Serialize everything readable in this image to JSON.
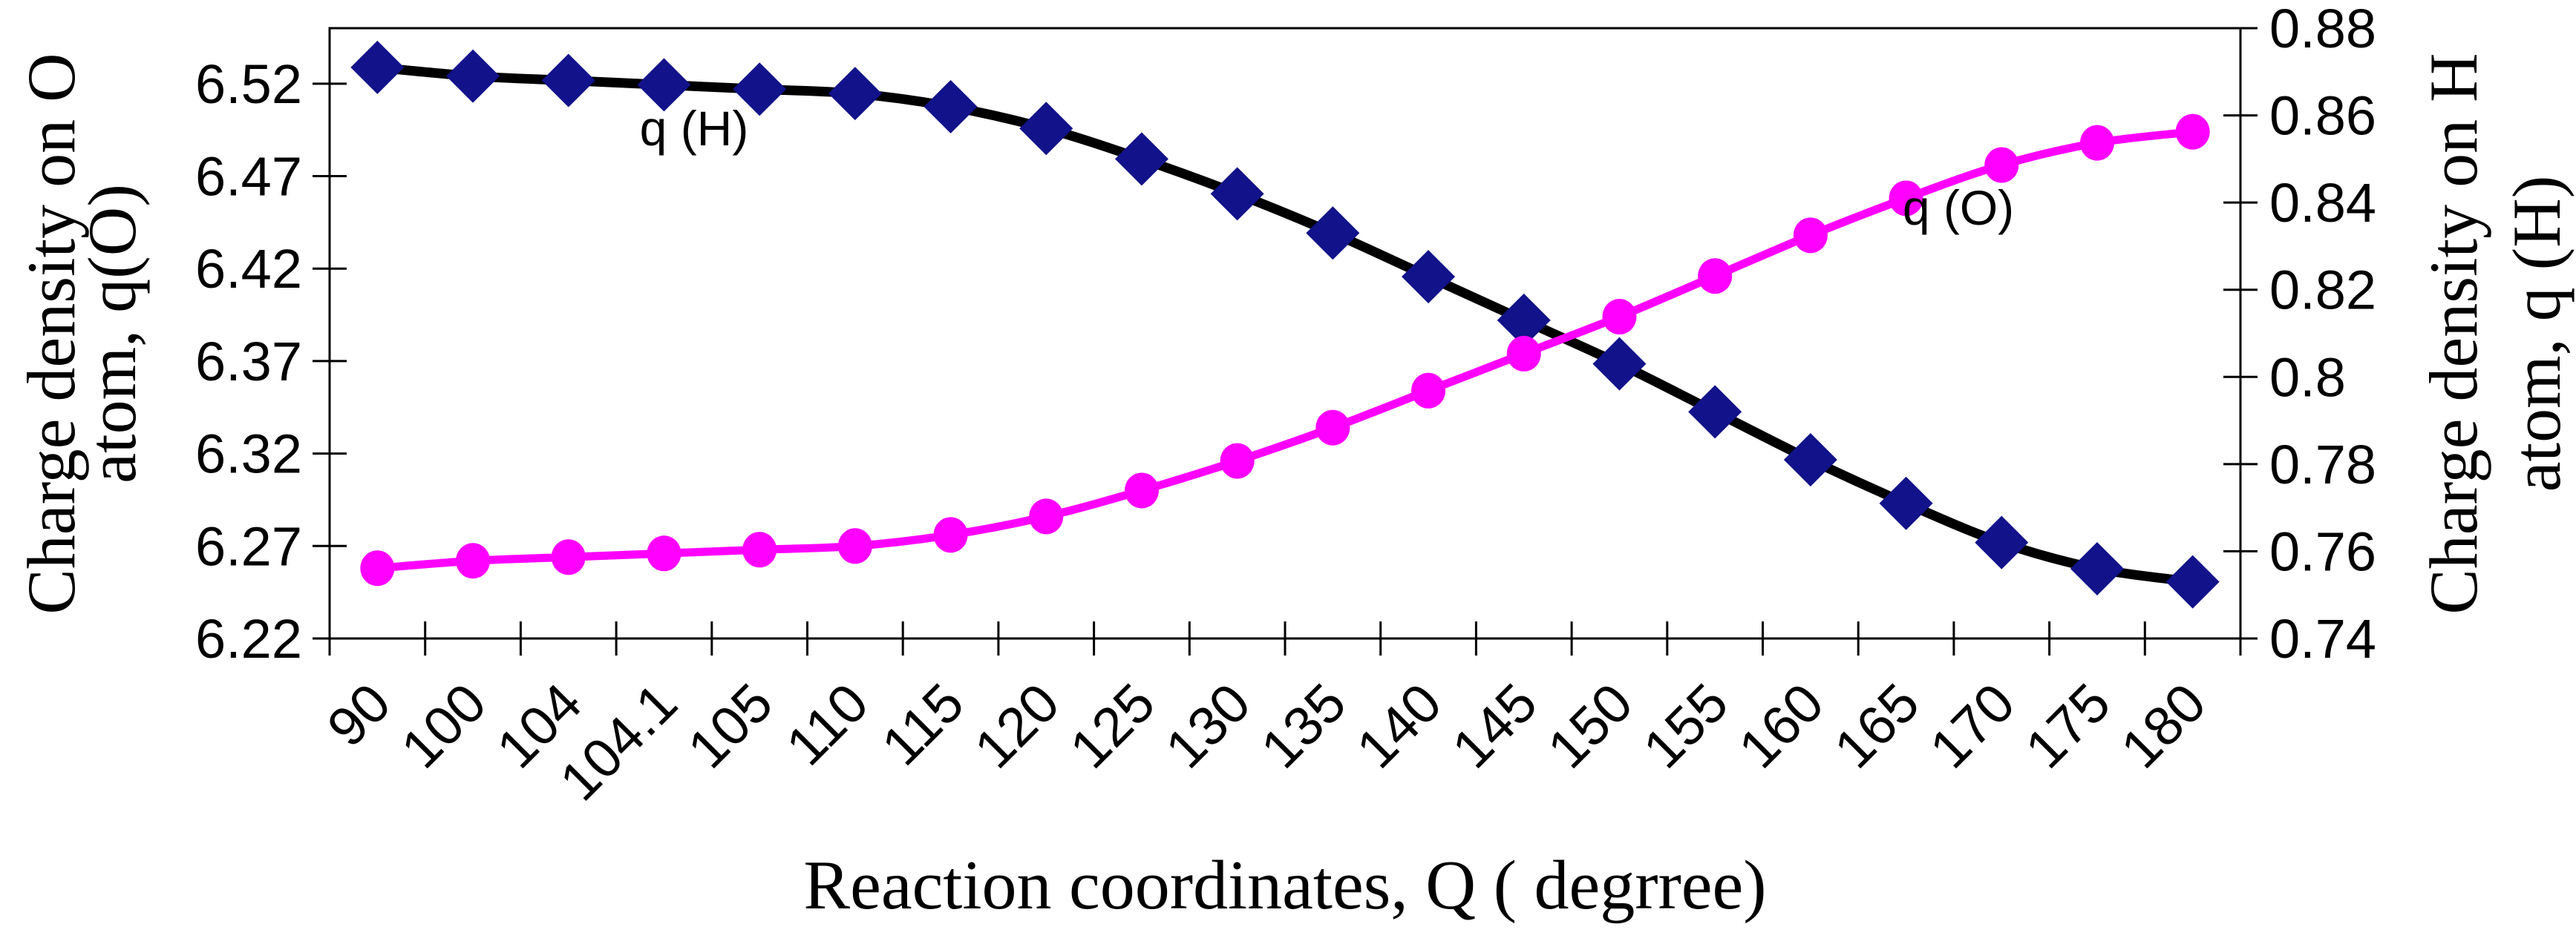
{
  "chart_data": {
    "type": "line",
    "title": "",
    "xlabel": "Reaction coordinates, Q ( degrree)",
    "categories": [
      "90",
      "100",
      "104",
      "104.1",
      "105",
      "110",
      "115",
      "120",
      "125",
      "130",
      "135",
      "140",
      "145",
      "150",
      "155",
      "160",
      "165",
      "170",
      "175",
      "180"
    ],
    "x_axis": {
      "label": "Reaction coordinates, Q ( degrree)",
      "tick_rotation_deg": -45,
      "grid": false
    },
    "left_axis": {
      "title": "Charge density on O atom, q(O)",
      "title_line1": "Charge density on O",
      "title_line2": "atom, q(O)",
      "tick_labels": [
        "6.22",
        "6.27",
        "6.32",
        "6.37",
        "6.42",
        "6.47",
        "6.52"
      ],
      "tick_values": [
        6.22,
        6.27,
        6.32,
        6.37,
        6.42,
        6.47,
        6.52
      ],
      "min": 6.22,
      "max": 6.55
    },
    "right_axis": {
      "title": "Charge density on H atom, q (H)",
      "title_line1": "Charge density on H",
      "title_line2": "atom, q (H)",
      "tick_labels": [
        "0.74",
        "0.76",
        "0.78",
        "0.8",
        "0.82",
        "0.84",
        "0.86",
        "0.88"
      ],
      "tick_values": [
        0.74,
        0.76,
        0.78,
        0.8,
        0.82,
        0.84,
        0.86,
        0.88
      ],
      "min": 0.74,
      "max": 0.88
    },
    "series": [
      {
        "name": "q (H)",
        "axis": "right",
        "marker": "diamond",
        "line_color": "#000000",
        "marker_color": "#12128a",
        "values": [
          0.871,
          0.869,
          0.868,
          0.867,
          0.866,
          0.865,
          0.862,
          0.857,
          0.85,
          0.842,
          0.833,
          0.823,
          0.813,
          0.803,
          0.792,
          0.781,
          0.771,
          0.762,
          0.756,
          0.753
        ]
      },
      {
        "name": "q (O)",
        "axis": "left",
        "marker": "circle",
        "line_color": "#ff00ff",
        "marker_color": "#ff00ff",
        "values": [
          6.258,
          6.262,
          6.264,
          6.266,
          6.268,
          6.27,
          6.276,
          6.286,
          6.3,
          6.316,
          6.334,
          6.354,
          6.374,
          6.394,
          6.416,
          6.438,
          6.458,
          6.476,
          6.488,
          6.494
        ]
      }
    ],
    "series_labels": [
      {
        "text": "q (H)"
      },
      {
        "text": "q (O)"
      }
    ],
    "legend": "none",
    "grid": false,
    "colors": {
      "qH_line": "#000000",
      "qH_marker": "#12128a",
      "qO": "#ff00ff",
      "axis": "#000000",
      "background": "#ffffff"
    }
  }
}
